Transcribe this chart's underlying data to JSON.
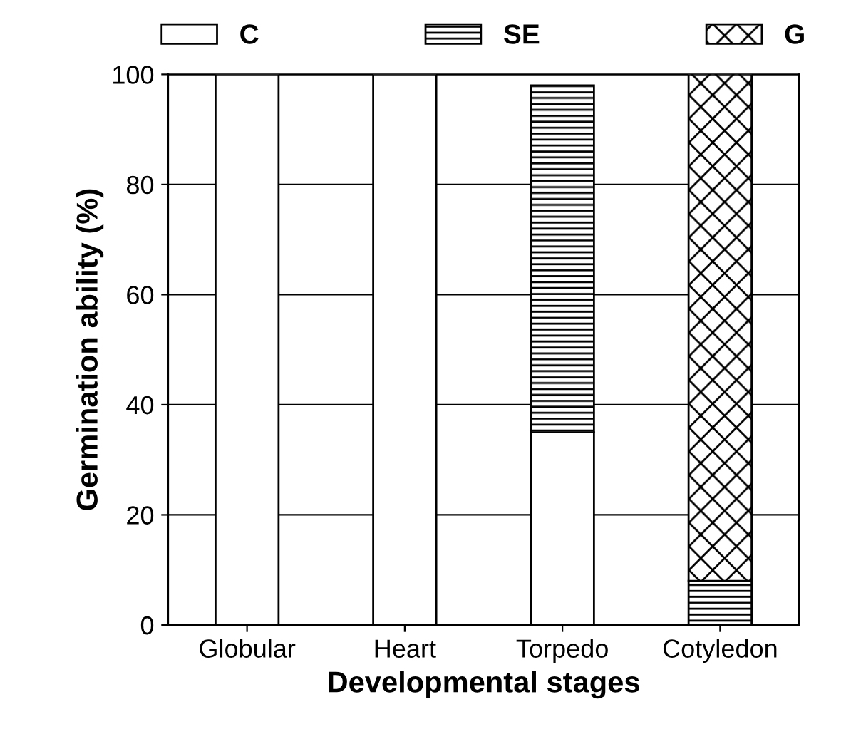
{
  "chart_data": {
    "type": "bar",
    "stacked": true,
    "xlabel": "Developmental stages",
    "ylabel": "Germination ability (%)",
    "categories": [
      "Globular",
      "Heart",
      "Torpedo",
      "Cotyledon"
    ],
    "series": [
      {
        "name": "C",
        "color": "#ffffff",
        "values": [
          100,
          100,
          35,
          0
        ]
      },
      {
        "name": "SE",
        "color": "#000000",
        "values": [
          0,
          0,
          63,
          8
        ]
      },
      {
        "name": "G",
        "color": "#000000",
        "values": [
          0,
          0,
          0,
          92
        ]
      }
    ],
    "ylim": [
      0,
      100
    ],
    "yticks": [
      0,
      20,
      40,
      60,
      80,
      100
    ],
    "grid": "y",
    "legend": "top"
  }
}
